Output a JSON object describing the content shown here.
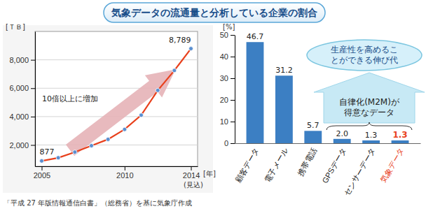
{
  "title": "気象データの流通量と分析している企業の割合",
  "source": "「平成 27 年版情報通信白書」（総務省）を基に気象庁作成",
  "chart_data": [
    {
      "type": "line",
      "x": [
        2005,
        2006,
        2007,
        2008,
        2009,
        2010,
        2011,
        2012,
        2013,
        2014
      ],
      "values": [
        877,
        1100,
        1500,
        1950,
        2400,
        3100,
        4100,
        5850,
        7250,
        8789
      ],
      "value_labels": [
        "877",
        null,
        null,
        null,
        null,
        null,
        null,
        null,
        null,
        "8,789"
      ],
      "data_labels": true,
      "color": "#e8401c",
      "marker": "circle",
      "xlim": [
        2004.6,
        2014.4
      ],
      "xticks": [
        2005,
        2010,
        2014
      ],
      "ylim": [
        500,
        10000
      ],
      "yticks": [
        {
          "value": 2000,
          "label": "2,000"
        },
        {
          "value": 4000,
          "label": "4,000"
        },
        {
          "value": 6000,
          "label": "6,000"
        },
        {
          "value": 8000,
          "label": "8,000"
        }
      ],
      "y_label": "[ＴＢ]",
      "x_label": "[年]",
      "annotations": [
        "10倍以上に増加",
        "(見込)"
      ]
    },
    {
      "type": "bar",
      "categories": [
        "顧客データ",
        "電子メール",
        "携帯電話",
        "GPSデータ",
        "センサーデータ",
        "気象データ"
      ],
      "values": [
        46.7,
        31.2,
        5.7,
        2.0,
        1.3,
        1.3
      ],
      "value_labels": [
        "46.7",
        "31.2",
        "5.7",
        "2.0",
        "1.3",
        "1.3"
      ],
      "data_labels": true,
      "color": "#3c7fc3",
      "ylim": [
        0,
        50
      ],
      "yticks": [
        0,
        10,
        20,
        30,
        40,
        50
      ],
      "y_label": "[%]",
      "annotations": [
        [
          "生産性を高めるこ",
          "とができる伸び代"
        ],
        [
          "自律化(M2M)が",
          "得意なデータ"
        ]
      ]
    }
  ]
}
